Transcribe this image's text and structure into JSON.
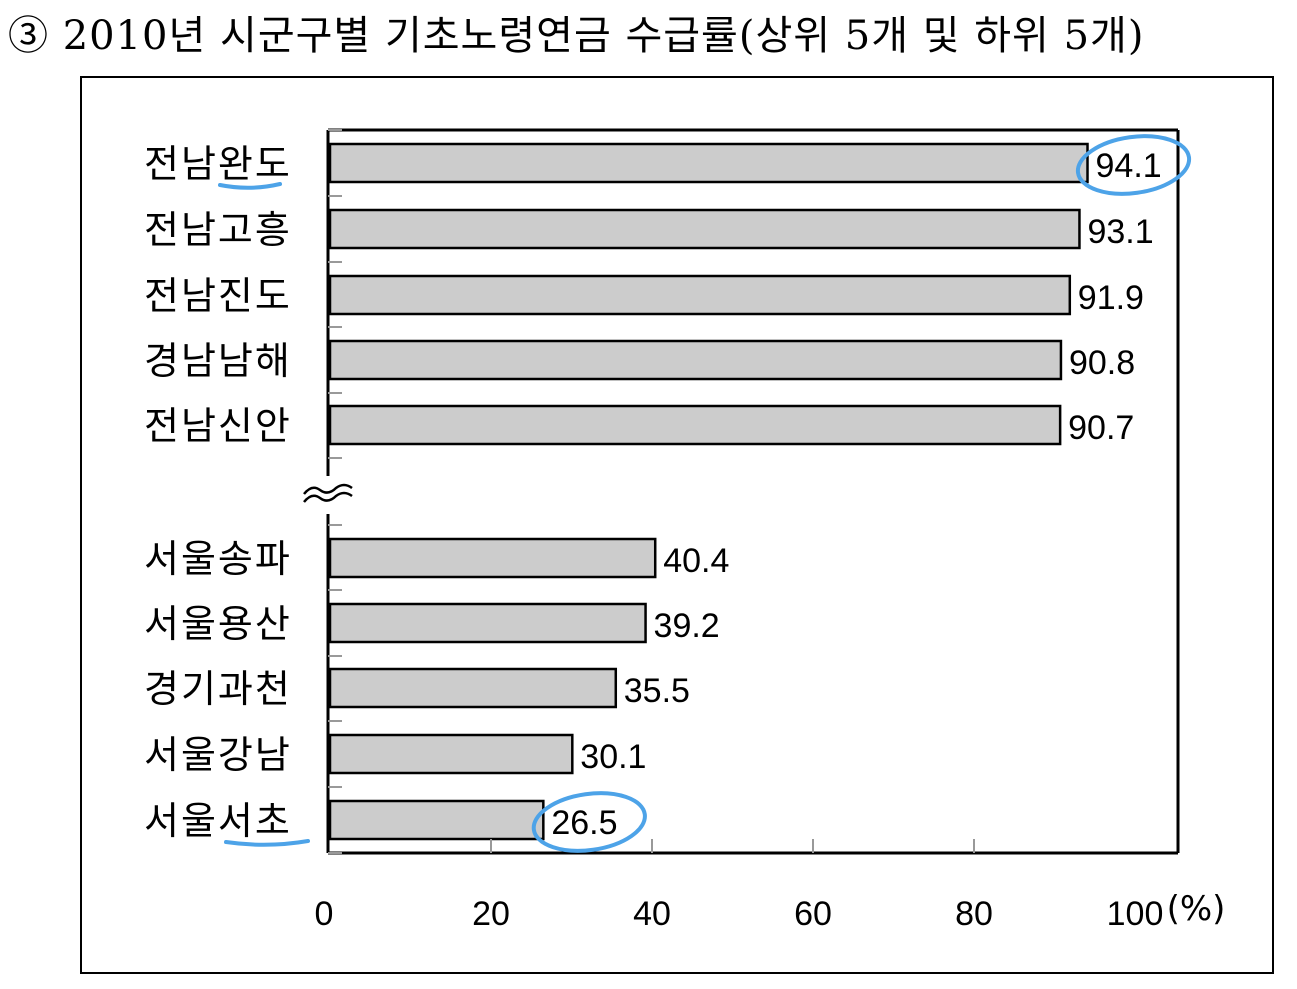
{
  "chart_data": {
    "type": "bar",
    "orientation": "horizontal",
    "title": "③ 2010년 시군구별 기초노령연금 수급률(상위 5개 및 하위 5개)",
    "unit": "(%)",
    "xlim": [
      0,
      100
    ],
    "x_ticks": [
      "0",
      "20",
      "40",
      "60",
      "80",
      "100"
    ],
    "axis_break": "between-groups",
    "grid": false,
    "bar_color": "#cccccc",
    "categories": [
      "전남완도",
      "전남고흥",
      "전남진도",
      "경남남해",
      "전남신안",
      "서울송파",
      "서울용산",
      "경기과천",
      "서울강남",
      "서울서초"
    ],
    "values": [
      94.1,
      93.1,
      91.9,
      90.8,
      90.7,
      40.4,
      39.2,
      35.5,
      30.1,
      26.5
    ],
    "value_labels": [
      "94.1",
      "93.1",
      "91.9",
      "90.8",
      "90.7",
      "40.4",
      "39.2",
      "35.5",
      "30.1",
      "26.5"
    ],
    "annotations": {
      "circled_values": [
        "94.1",
        "26.5"
      ],
      "underlined_categories": [
        "전남완도",
        "서울서초"
      ],
      "highlight_color": "#4da3e8"
    }
  }
}
